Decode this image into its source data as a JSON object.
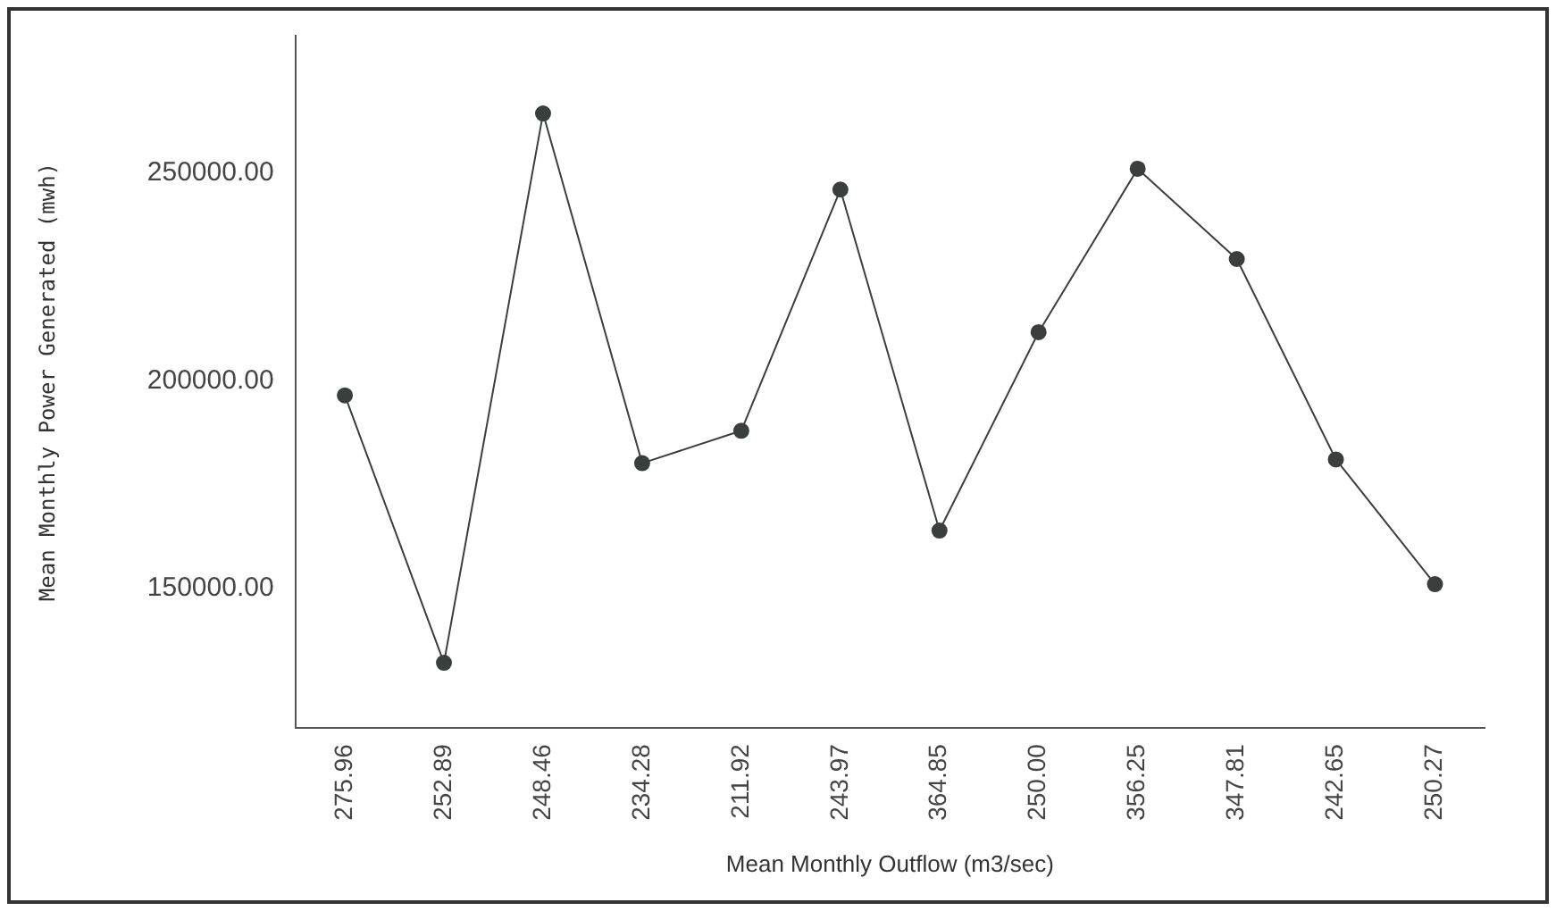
{
  "chart_data": {
    "type": "line",
    "xlabel": "Mean Monthly Outflow (m3/sec)",
    "ylabel": "Mean Monthly Power Generated (mwh)",
    "categories": [
      "275.96",
      "252.89",
      "248.46",
      "234.28",
      "211.92",
      "243.97",
      "364.85",
      "250.00",
      "356.25",
      "347.81",
      "242.65",
      "250.27"
    ],
    "series": [
      {
        "color": "#3a3f3d",
        "values": [
          196500,
          132200,
          264300,
          180200,
          188000,
          246000,
          164000,
          211700,
          251000,
          229300,
          181100,
          151100
        ]
      }
    ],
    "ylim": [
      116500,
      283000
    ],
    "yticks": [
      {
        "value": 150000,
        "label": "150000.00"
      },
      {
        "value": 200000,
        "label": "200000.00"
      },
      {
        "value": 250000,
        "label": "250000.00"
      }
    ],
    "grid": false,
    "legend": false,
    "marker": "circle",
    "line_style": "solid"
  }
}
